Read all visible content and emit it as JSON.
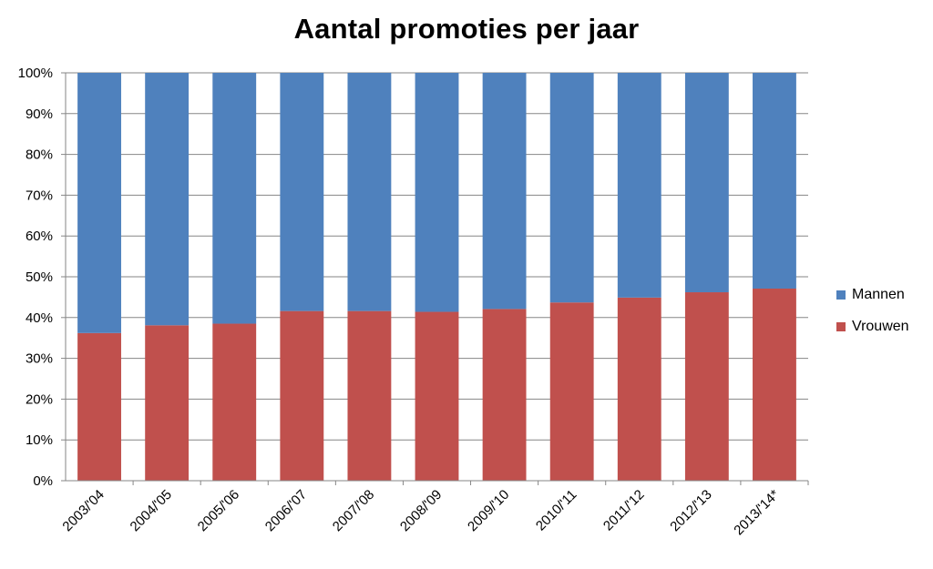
{
  "chart_data": {
    "type": "bar",
    "stacked": "percent",
    "title": "Aantal promoties per jaar",
    "xlabel": "",
    "ylabel": "",
    "ylim": [
      0,
      100
    ],
    "yticks": [
      "0%",
      "10%",
      "20%",
      "30%",
      "40%",
      "50%",
      "60%",
      "70%",
      "80%",
      "90%",
      "100%"
    ],
    "grid": true,
    "legend_position": "right",
    "categories": [
      "2003/'04",
      "2004/'05",
      "2005/'06",
      "2006/'07",
      "2007/'08",
      "2008/'09",
      "2009/'10",
      "2010/'11",
      "2011/'12",
      "2012/'13",
      "2013/'14*"
    ],
    "series": [
      {
        "name": "Vrouwen",
        "color": "#C0504D",
        "values": [
          36.2,
          38.1,
          38.5,
          41.6,
          41.6,
          41.4,
          42.1,
          43.7,
          44.9,
          46.2,
          47.1
        ]
      },
      {
        "name": "Mannen",
        "color": "#4F81BD",
        "values": [
          63.8,
          61.9,
          61.5,
          58.4,
          58.4,
          58.6,
          57.9,
          56.3,
          55.1,
          53.8,
          52.9
        ]
      }
    ],
    "legend": [
      "Mannen",
      "Vrouwen"
    ]
  }
}
